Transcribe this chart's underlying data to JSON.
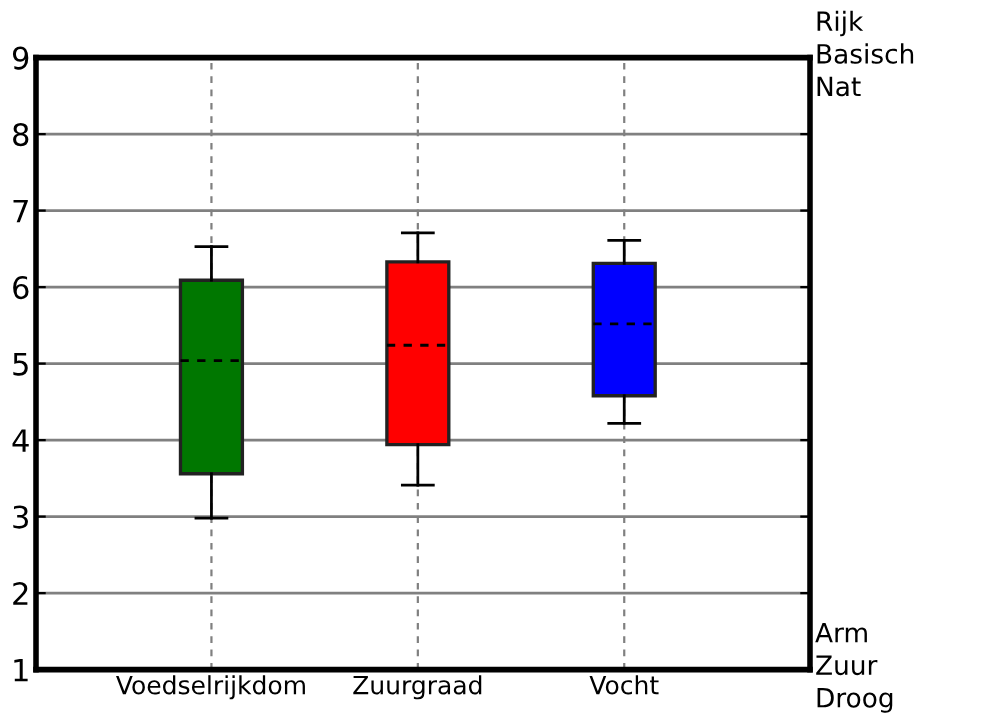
{
  "chart_data": {
    "type": "box",
    "categories": [
      "Voedselrijkdom",
      "Zuurgraad",
      "Vocht"
    ],
    "boxes": [
      {
        "low": 2.98,
        "q1": 3.56,
        "median": 5.04,
        "q3": 6.09,
        "high": 6.53
      },
      {
        "low": 3.41,
        "q1": 3.94,
        "median": 5.24,
        "q3": 6.33,
        "high": 6.71
      },
      {
        "low": 4.22,
        "q1": 4.58,
        "median": 5.52,
        "q3": 6.31,
        "high": 6.61
      }
    ],
    "colors": [
      "#007700",
      "#ff0000",
      "#0000ff"
    ],
    "ylim": [
      1,
      9
    ],
    "yticks": [
      1,
      2,
      3,
      4,
      5,
      6,
      7,
      8,
      9
    ],
    "grid": true,
    "annotations": [
      "Rijk\nBasisch\nNat",
      "Arm\nZuur\nDroog"
    ]
  }
}
